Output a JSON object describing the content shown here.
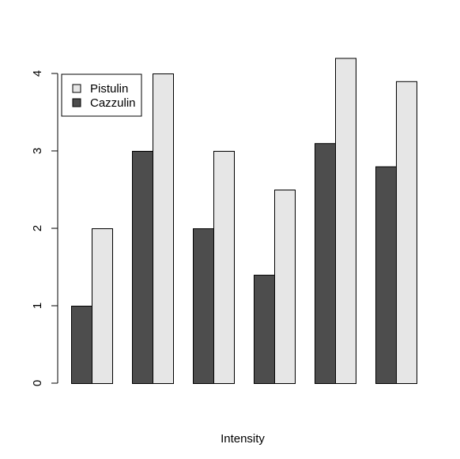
{
  "chart_data": {
    "type": "bar",
    "mode": "grouped",
    "title": "",
    "xlabel": "Intensity",
    "ylabel": "",
    "ylim": [
      0,
      4.3
    ],
    "yticks": [
      0,
      1,
      2,
      3,
      4
    ],
    "categories": [
      "",
      "",
      "",
      "",
      "",
      ""
    ],
    "series": [
      {
        "name": "Cazzulin",
        "color": "#4d4d4d",
        "values": [
          1,
          3,
          2,
          1.4,
          3.1,
          2.8
        ]
      },
      {
        "name": "Pistulin",
        "color": "#e6e6e6",
        "values": [
          2,
          4,
          3,
          2.5,
          4.2,
          3.9
        ]
      }
    ],
    "legend": {
      "position": "top-left",
      "entries": [
        {
          "label": "Pistulin",
          "color": "#e6e6e6"
        },
        {
          "label": "Cazzulin",
          "color": "#4d4d4d"
        }
      ]
    },
    "grid": false
  }
}
